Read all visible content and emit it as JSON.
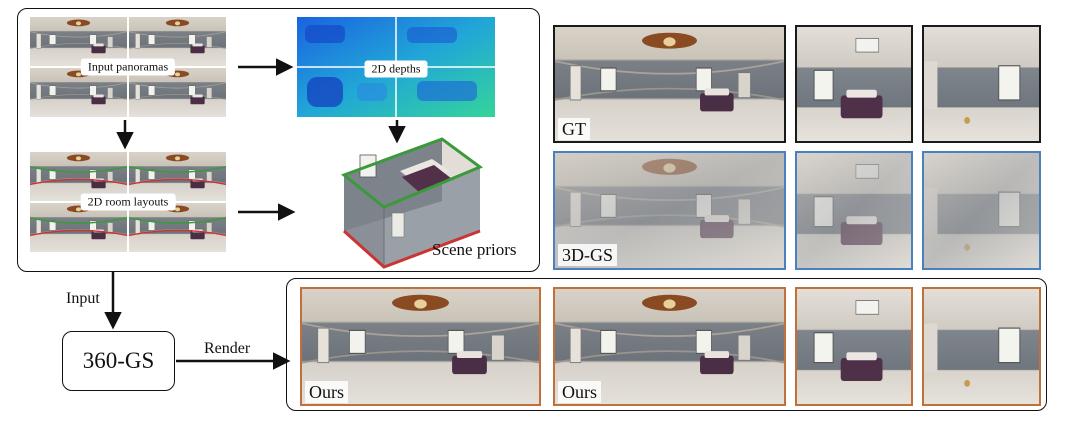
{
  "pipeline": {
    "input_panoramas_label": "Input panoramas",
    "depths_label": "2D depths",
    "room_layouts_label": "2D room layouts",
    "scene_priors_label": "Scene priors",
    "input_label": "Input",
    "method_label": "360-GS",
    "render_label": "Render"
  },
  "comparison": {
    "gt_label": "GT",
    "baseline_label": "3D-GS",
    "ours_render_label": "Ours",
    "ours_compare_label": "Ours"
  },
  "colors": {
    "gt_border": "#1a1a1a",
    "baseline_border": "#4a80c0",
    "ours_border": "#c0703a",
    "layout_green": "#3a9a3a",
    "layout_red": "#cc3333"
  }
}
